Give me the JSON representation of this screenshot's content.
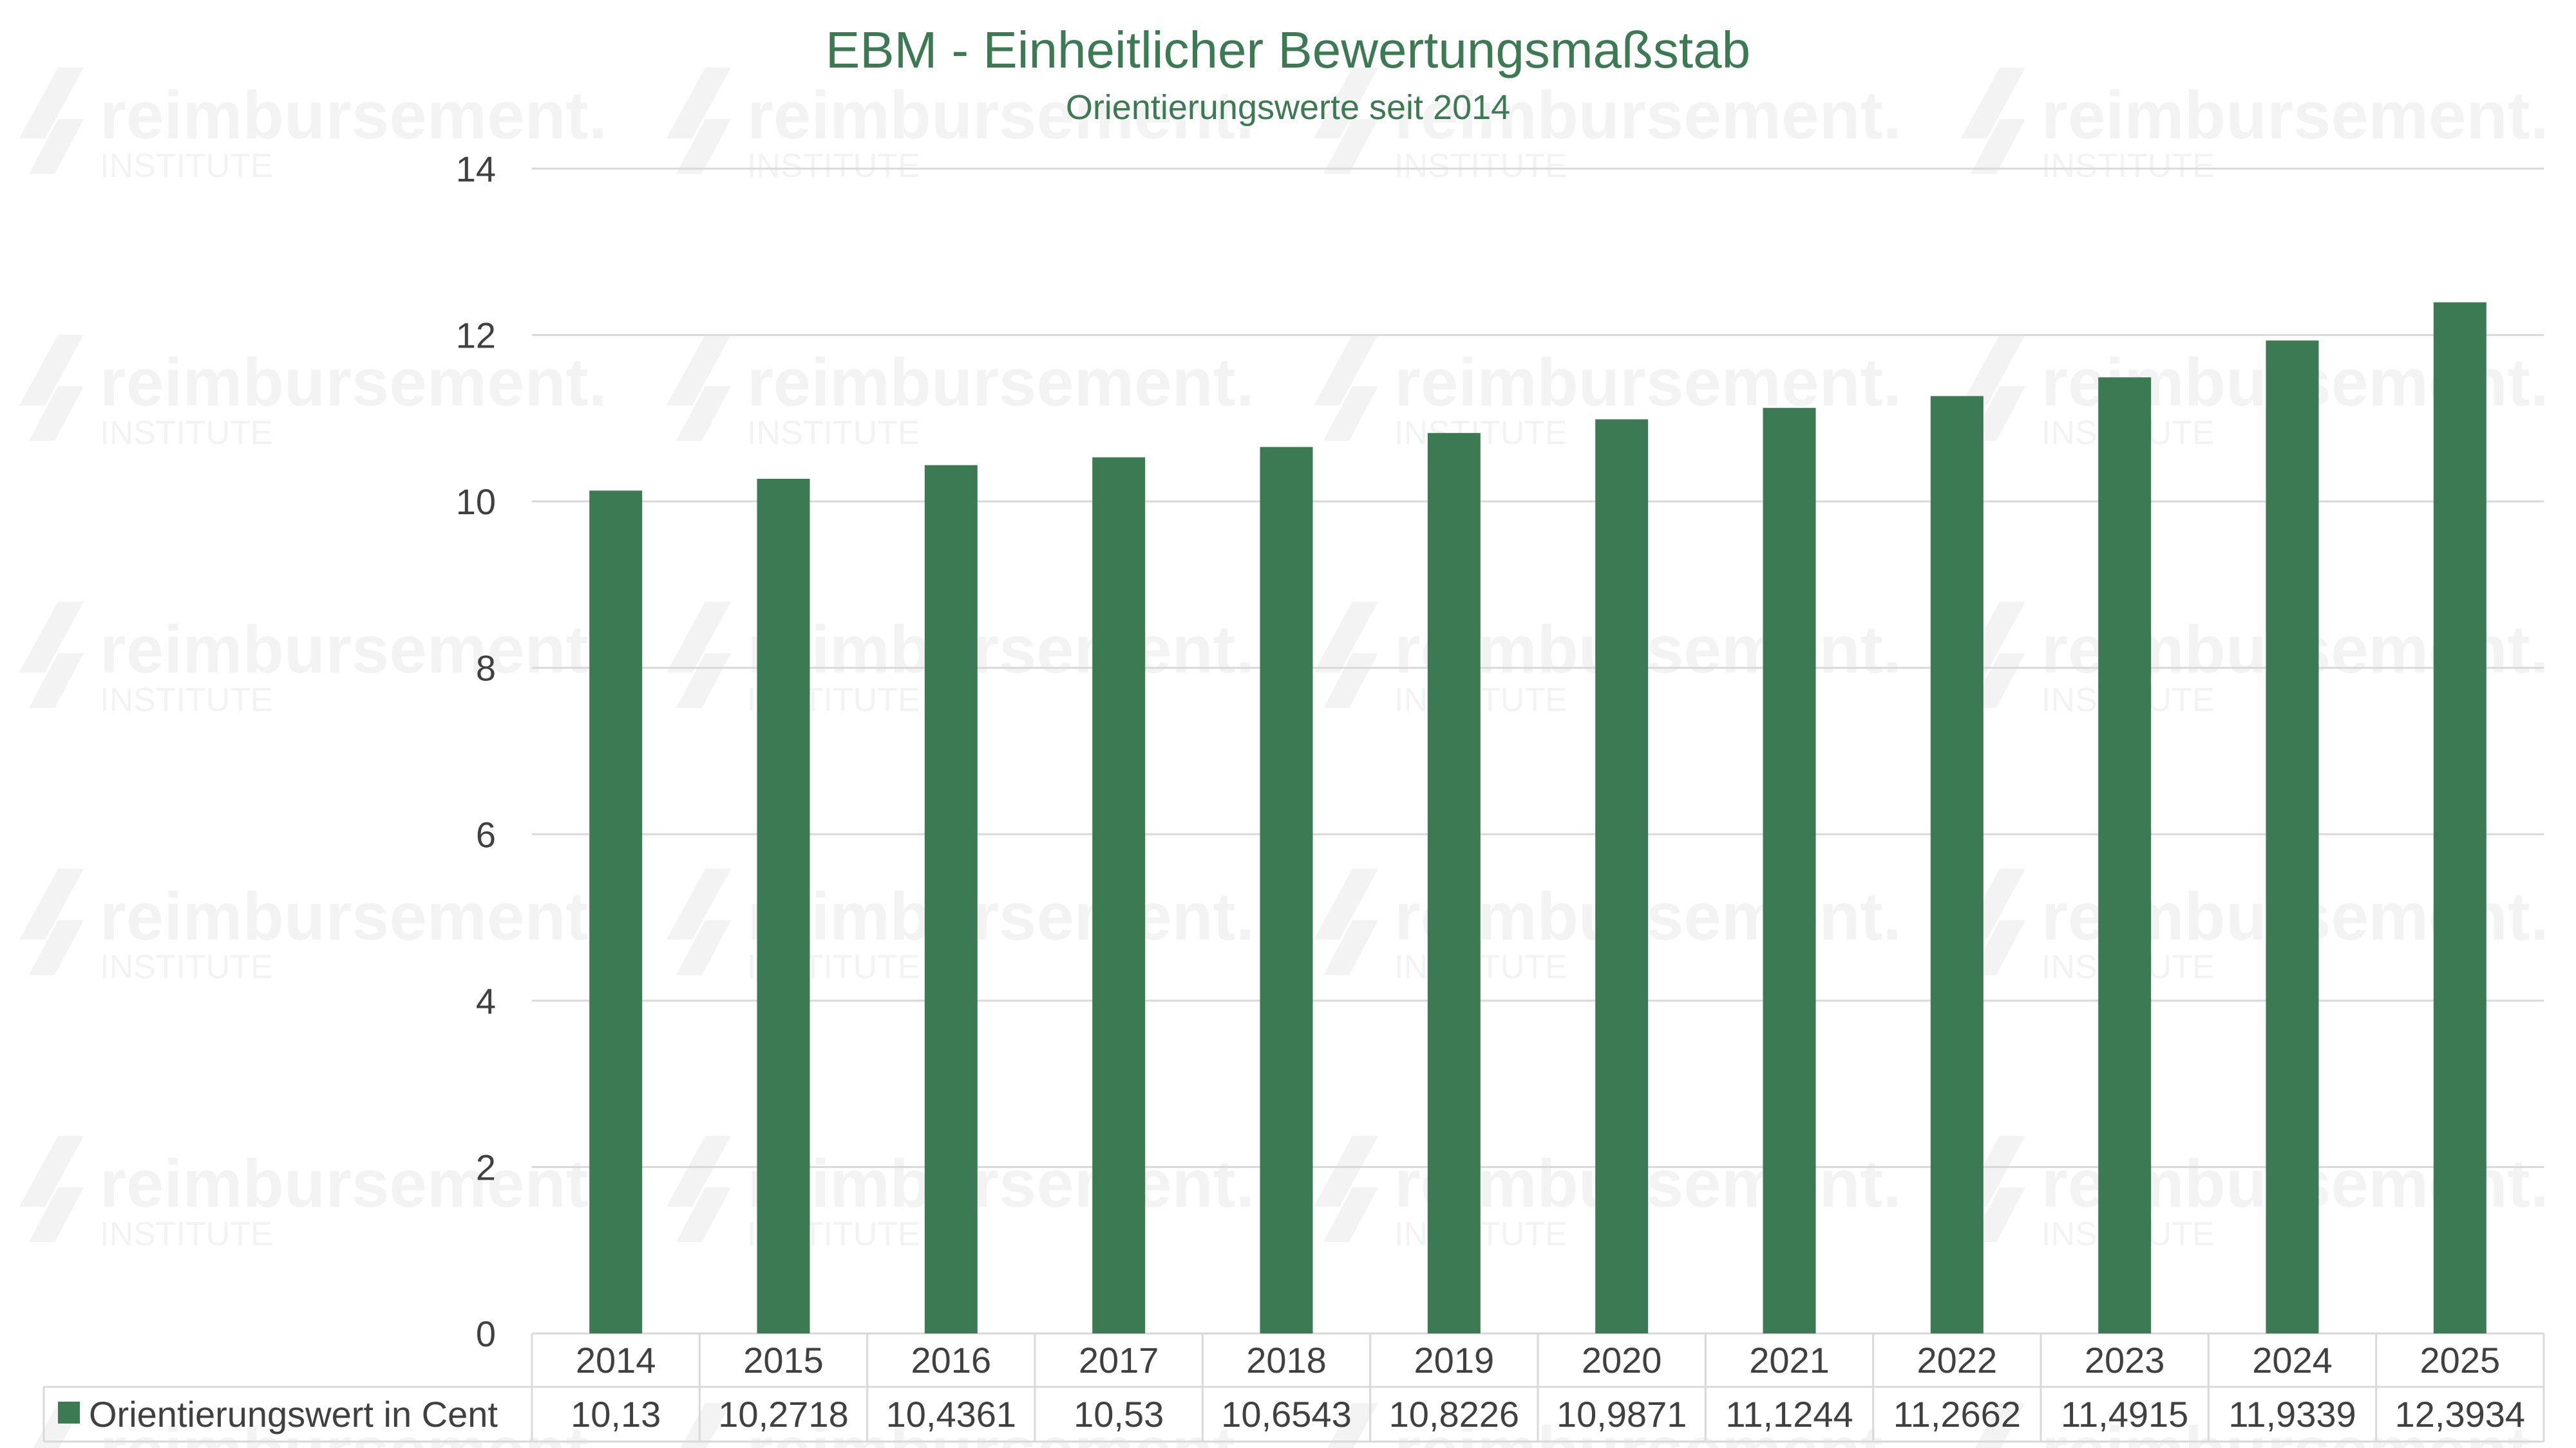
{
  "chart_data": {
    "type": "bar",
    "title": "EBM - Einheitlicher Bewertungsmaßstab",
    "subtitle": "Orientierungswerte seit 2014",
    "categories": [
      "2014",
      "2015",
      "2016",
      "2017",
      "2018",
      "2019",
      "2020",
      "2021",
      "2022",
      "2023",
      "2024",
      "2025"
    ],
    "series": [
      {
        "name": "Orientierungswert in Cent",
        "values": [
          10.13,
          10.2718,
          10.4361,
          10.53,
          10.6543,
          10.8226,
          10.9871,
          11.1244,
          11.2662,
          11.4915,
          11.9339,
          12.3934
        ],
        "value_labels": [
          "10,13",
          "10,2718",
          "10,4361",
          "10,53",
          "10,6543",
          "10,8226",
          "10,9871",
          "11,1244",
          "11,2662",
          "11,4915",
          "11,9339",
          "12,3934"
        ],
        "color": "#3c7a53"
      }
    ],
    "ylim": [
      0,
      14
    ],
    "yticks": [
      0,
      2,
      4,
      6,
      8,
      10,
      12,
      14
    ],
    "grid": true,
    "legend_placement": "data-table",
    "watermark": {
      "brand": "reimbursement.",
      "sub": "INSTITUTE"
    },
    "colors": {
      "title": "#3c7a53",
      "bar": "#3c7a53",
      "grid": "#d9d9d9",
      "text": "#404040",
      "watermark": "#f3f3f3"
    }
  }
}
